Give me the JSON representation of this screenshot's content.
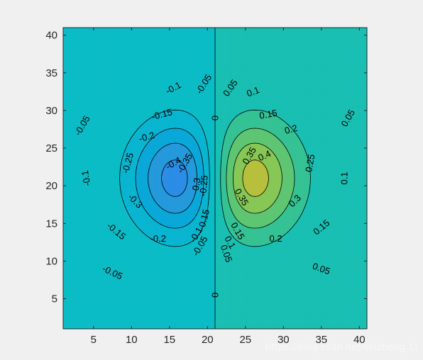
{
  "chart_data": {
    "type": "contour",
    "title": "",
    "xlabel": "",
    "ylabel": "",
    "xlim": [
      1,
      41
    ],
    "ylim": [
      1,
      41
    ],
    "xticks": [
      5,
      10,
      15,
      20,
      25,
      30,
      35,
      40
    ],
    "yticks": [
      5,
      10,
      15,
      20,
      25,
      30,
      35,
      40
    ],
    "grid": false,
    "levels": [
      -0.4,
      -0.35,
      -0.3,
      -0.25,
      -0.2,
      -0.15,
      -0.1,
      -0.05,
      0,
      0.05,
      0.1,
      0.15,
      0.2,
      0.25,
      0.3,
      0.35,
      0.4
    ],
    "extrema": [
      {
        "type": "min",
        "x": 14,
        "y": 21,
        "value": -0.43
      },
      {
        "type": "max",
        "x": 28,
        "y": 21,
        "value": 0.43
      }
    ],
    "contour_labels": [
      {
        "text": "-0.05",
        "x": 19.5,
        "y": 33.5,
        "angle": -58
      },
      {
        "text": "-0.1",
        "x": 15.5,
        "y": 33.0,
        "angle": -28
      },
      {
        "text": "-0.15",
        "x": 14.0,
        "y": 29.5,
        "angle": -15
      },
      {
        "text": "-0.2",
        "x": 12.0,
        "y": 26.5,
        "angle": -15
      },
      {
        "text": "-0.05",
        "x": 3.5,
        "y": 28.0,
        "angle": -60
      },
      {
        "text": "-0.25",
        "x": 9.5,
        "y": 23.0,
        "angle": -75
      },
      {
        "text": "-0.1",
        "x": 4.0,
        "y": 21.0,
        "angle": -100
      },
      {
        "text": "-0.4",
        "x": 15.5,
        "y": 23.0,
        "angle": -30
      },
      {
        "text": "-0.35",
        "x": 17.0,
        "y": 23.0,
        "angle": -60
      },
      {
        "text": "-0.3",
        "x": 18.5,
        "y": 20.0,
        "angle": -80
      },
      {
        "text": "-0.25",
        "x": 19.5,
        "y": 20.0,
        "angle": -85
      },
      {
        "text": "-0.3",
        "x": 10.5,
        "y": 18.0,
        "angle": 45
      },
      {
        "text": "-0.2",
        "x": 13.5,
        "y": 13.0,
        "angle": 0
      },
      {
        "text": "-0.15",
        "x": 8.0,
        "y": 14.0,
        "angle": 40
      },
      {
        "text": "-0.05",
        "x": 7.5,
        "y": 8.5,
        "angle": 25
      },
      {
        "text": "-0.15",
        "x": 19.5,
        "y": 15.5,
        "angle": -75
      },
      {
        "text": "-0.1",
        "x": 18.5,
        "y": 13.5,
        "angle": -60
      },
      {
        "text": "-0.05",
        "x": 19.0,
        "y": 12.0,
        "angle": -60
      },
      {
        "text": "0",
        "x": 21.0,
        "y": 29.0,
        "angle": -90
      },
      {
        "text": "0",
        "x": 21.0,
        "y": 5.5,
        "angle": -90
      },
      {
        "text": "0.05",
        "x": 23.0,
        "y": 33.0,
        "angle": -55
      },
      {
        "text": "0.1",
        "x": 26.0,
        "y": 32.5,
        "angle": -20
      },
      {
        "text": "0.15",
        "x": 28.0,
        "y": 29.5,
        "angle": -10
      },
      {
        "text": "0.2",
        "x": 31.0,
        "y": 27.5,
        "angle": -15
      },
      {
        "text": "0.05",
        "x": 38.5,
        "y": 29.0,
        "angle": -60
      },
      {
        "text": "0.35",
        "x": 25.5,
        "y": 24.0,
        "angle": -60
      },
      {
        "text": "0.4",
        "x": 27.5,
        "y": 24.0,
        "angle": -25
      },
      {
        "text": "0.25",
        "x": 33.5,
        "y": 23.0,
        "angle": -80
      },
      {
        "text": "0.1",
        "x": 38.0,
        "y": 21.0,
        "angle": -90
      },
      {
        "text": "0.3",
        "x": 31.5,
        "y": 18.0,
        "angle": -45
      },
      {
        "text": "0.35",
        "x": 24.5,
        "y": 18.5,
        "angle": 60
      },
      {
        "text": "0.15",
        "x": 35.0,
        "y": 14.5,
        "angle": -40
      },
      {
        "text": "0.2",
        "x": 29.0,
        "y": 13.0,
        "angle": 0
      },
      {
        "text": "0.15",
        "x": 24.0,
        "y": 14.0,
        "angle": 60
      },
      {
        "text": "0.1",
        "x": 23.0,
        "y": 12.5,
        "angle": 60
      },
      {
        "text": "0.05",
        "x": 22.5,
        "y": 11.0,
        "angle": 70
      },
      {
        "text": "0.05",
        "x": 35.0,
        "y": 9.0,
        "angle": 20
      }
    ],
    "colors": {
      "background_fig": "#f0f0f0",
      "axes_border": "#262626",
      "contour_line": "#000000"
    }
  },
  "watermark": "https://blog.csdn.net/shizheng_Li"
}
